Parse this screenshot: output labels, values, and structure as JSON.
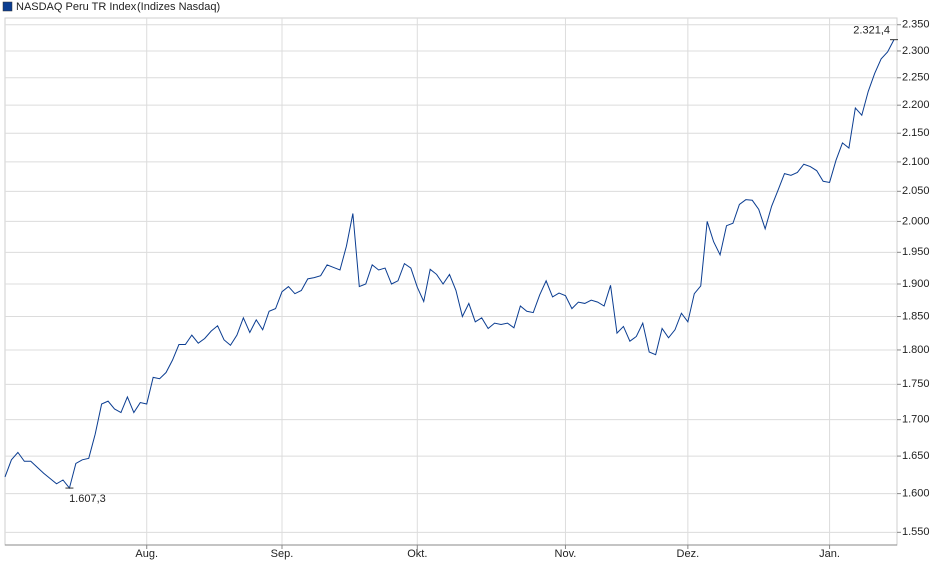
{
  "chart_data": {
    "type": "line",
    "subtitle": "(Indizes Nasdaq)",
    "log_scale": true,
    "grid": true,
    "categories": [
      null,
      null,
      null,
      null,
      null,
      null,
      null,
      null,
      null,
      null,
      null,
      null,
      null,
      null,
      null,
      null,
      null,
      null,
      null,
      null,
      null,
      null,
      "Aug.",
      null,
      null,
      null,
      null,
      null,
      null,
      null,
      null,
      null,
      null,
      null,
      null,
      null,
      null,
      null,
      null,
      null,
      null,
      null,
      null,
      "Sep.",
      null,
      null,
      null,
      null,
      null,
      null,
      null,
      null,
      null,
      null,
      null,
      null,
      null,
      null,
      null,
      null,
      null,
      null,
      null,
      null,
      "Okt.",
      null,
      null,
      null,
      null,
      null,
      null,
      null,
      null,
      null,
      null,
      null,
      null,
      null,
      null,
      null,
      null,
      null,
      null,
      null,
      null,
      null,
      null,
      "Nov.",
      null,
      null,
      null,
      null,
      null,
      null,
      null,
      null,
      null,
      null,
      null,
      null,
      null,
      null,
      null,
      null,
      null,
      null,
      "Dez.",
      null,
      null,
      null,
      null,
      null,
      null,
      null,
      null,
      null,
      null,
      null,
      null,
      null,
      null,
      null,
      null,
      null,
      null,
      null,
      null,
      null,
      "Jan.",
      null,
      null,
      null,
      null,
      null,
      null,
      null,
      null,
      null,
      null
    ],
    "series": [
      {
        "name": "NASDAQ Peru TR Index",
        "color": "#0b3d91",
        "values": [
          1622,
          1645,
          1655,
          1643,
          1643,
          1635,
          1627,
          1620,
          1613,
          1618,
          1607.3,
          1640,
          1645,
          1647,
          1680,
          1722,
          1726,
          1715,
          1710,
          1732,
          1710,
          1724,
          1722,
          1760,
          1758,
          1767,
          1785,
          1808,
          1808,
          1822,
          1810,
          1817,
          1828,
          1836,
          1815,
          1807,
          1822,
          1848,
          1826,
          1845,
          1830,
          1858,
          1862,
          1888,
          1896,
          1885,
          1890,
          1908,
          1910,
          1913,
          1930,
          1926,
          1922,
          1960,
          2013,
          1896,
          1900,
          1930,
          1922,
          1925,
          1900,
          1905,
          1932,
          1925,
          1895,
          1873,
          1923,
          1915,
          1900,
          1915,
          1890,
          1850,
          1870,
          1842,
          1848,
          1832,
          1840,
          1838,
          1840,
          1833,
          1866,
          1858,
          1856,
          1883,
          1905,
          1880,
          1886,
          1882,
          1862,
          1872,
          1870,
          1875,
          1872,
          1866,
          1898,
          1825,
          1835,
          1813,
          1820,
          1840,
          1797,
          1793,
          1832,
          1818,
          1830,
          1855,
          1842,
          1885,
          1897,
          2000,
          1967,
          1946,
          1993,
          1997,
          2028,
          2036,
          2035,
          2020,
          1988,
          2025,
          2052,
          2080,
          2077,
          2082,
          2096,
          2092,
          2085,
          2067,
          2065,
          2103,
          2133,
          2124,
          2195,
          2182,
          2225,
          2258,
          2285,
          2298,
          2321.4
        ],
        "value_labels": [
          null,
          null,
          null,
          null,
          null,
          null,
          null,
          null,
          null,
          null,
          "1.607,3",
          null,
          null,
          null,
          null,
          null,
          null,
          null,
          null,
          null,
          null,
          null,
          null,
          null,
          null,
          null,
          null,
          null,
          null,
          null,
          null,
          null,
          null,
          null,
          null,
          null,
          null,
          null,
          null,
          null,
          null,
          null,
          null,
          null,
          null,
          null,
          null,
          null,
          null,
          null,
          null,
          null,
          null,
          null,
          null,
          null,
          null,
          null,
          null,
          null,
          null,
          null,
          null,
          null,
          null,
          null,
          null,
          null,
          null,
          null,
          null,
          null,
          null,
          null,
          null,
          null,
          null,
          null,
          null,
          null,
          null,
          null,
          null,
          null,
          null,
          null,
          null,
          null,
          null,
          null,
          null,
          null,
          null,
          null,
          null,
          null,
          null,
          null,
          null,
          null,
          null,
          null,
          null,
          null,
          null,
          null,
          null,
          null,
          null,
          null,
          null,
          null,
          null,
          null,
          null,
          null,
          null,
          null,
          null,
          null,
          null,
          null,
          null,
          null,
          null,
          null,
          null,
          null,
          null,
          null,
          null,
          null,
          null,
          null,
          null,
          null,
          null,
          null,
          "2.321,4"
        ]
      }
    ],
    "ylim": [
      1534,
      2363
    ],
    "yticks": [
      {
        "value": 1550,
        "label": "1.550"
      },
      {
        "value": 1600,
        "label": "1.600"
      },
      {
        "value": 1650,
        "label": "1.650"
      },
      {
        "value": 1700,
        "label": "1.700"
      },
      {
        "value": 1750,
        "label": "1.750"
      },
      {
        "value": 1800,
        "label": "1.800"
      },
      {
        "value": 1850,
        "label": "1.850"
      },
      {
        "value": 1900,
        "label": "1.900"
      },
      {
        "value": 1950,
        "label": "1.950"
      },
      {
        "value": 2000,
        "label": "2.000"
      },
      {
        "value": 2050,
        "label": "2.050"
      },
      {
        "value": 2100,
        "label": "2.100"
      },
      {
        "value": 2150,
        "label": "2.150"
      },
      {
        "value": 2200,
        "label": "2.200"
      },
      {
        "value": 2250,
        "label": "2.250"
      },
      {
        "value": 2300,
        "label": "2.300"
      },
      {
        "value": 2350,
        "label": "2.350"
      }
    ]
  }
}
